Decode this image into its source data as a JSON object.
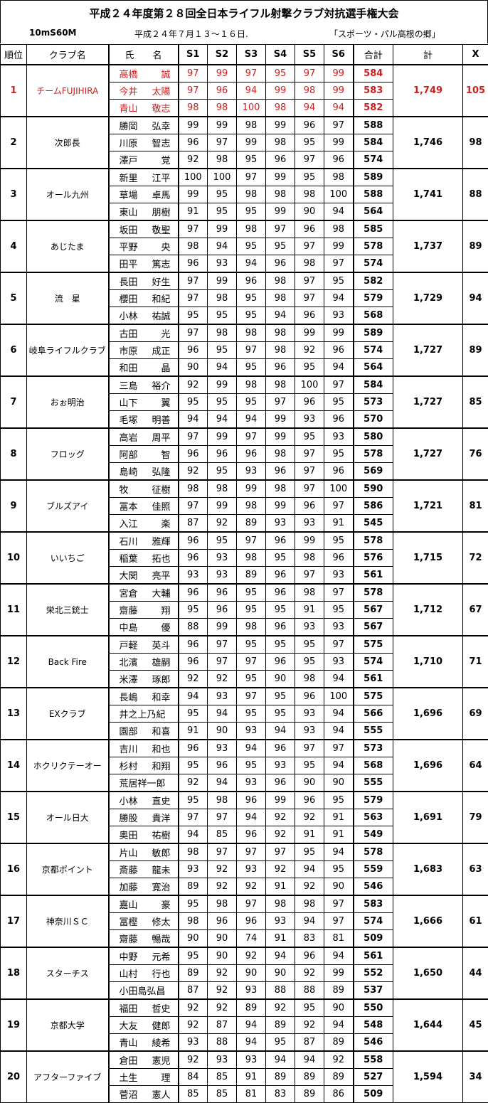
{
  "title": "平成２４年度第２８回全日本ライフル射撃クラブ対抗選手権大会",
  "event": "10mS60M",
  "date": "平成２４年７月１３～１６日.",
  "venue": "「スポーツ・パル高根の郷」",
  "headers": {
    "rank": "順位",
    "club": "クラブ名",
    "name": "氏　　名",
    "s": [
      "S1",
      "S2",
      "S3",
      "S4",
      "S5",
      "S6"
    ],
    "total": "合計",
    "grand": "計",
    "x": "X"
  },
  "colors": {
    "highlight": "#cc2020"
  },
  "teams": [
    {
      "rank": "1",
      "club": "チームFUJIHIRA",
      "grand": "1,749",
      "x": "105",
      "highlight": true,
      "members": [
        {
          "family": "高橋",
          "given": "誠",
          "scores": [
            97,
            99,
            97,
            95,
            97,
            99
          ],
          "total": 584
        },
        {
          "family": "今井",
          "given": "太陽",
          "scores": [
            97,
            96,
            94,
            99,
            98,
            99
          ],
          "total": 583
        },
        {
          "family": "青山",
          "given": "敬志",
          "scores": [
            98,
            98,
            100,
            98,
            94,
            94
          ],
          "total": 582
        }
      ]
    },
    {
      "rank": "2",
      "club": "次郎長",
      "grand": "1,746",
      "x": "98",
      "members": [
        {
          "family": "勝岡",
          "given": "弘幸",
          "scores": [
            99,
            99,
            98,
            99,
            96,
            97
          ],
          "total": 588
        },
        {
          "family": "川原",
          "given": "智志",
          "scores": [
            96,
            97,
            99,
            98,
            95,
            99
          ],
          "total": 584
        },
        {
          "family": "澤戸",
          "given": "覚",
          "scores": [
            92,
            98,
            95,
            96,
            97,
            96
          ],
          "total": 574
        }
      ]
    },
    {
      "rank": "3",
      "club": "オール九州",
      "grand": "1,741",
      "x": "88",
      "members": [
        {
          "family": "新里",
          "given": "江平",
          "scores": [
            100,
            100,
            97,
            99,
            95,
            98
          ],
          "total": 589
        },
        {
          "family": "草場",
          "given": "卓馬",
          "scores": [
            99,
            95,
            98,
            98,
            98,
            100
          ],
          "total": 588
        },
        {
          "family": "東山",
          "given": "朋樹",
          "scores": [
            91,
            95,
            95,
            99,
            90,
            94
          ],
          "total": 564
        }
      ]
    },
    {
      "rank": "4",
      "club": "あじたま",
      "grand": "1,737",
      "x": "89",
      "members": [
        {
          "family": "坂田",
          "given": "敬聖",
          "scores": [
            97,
            99,
            98,
            97,
            96,
            98
          ],
          "total": 585
        },
        {
          "family": "平野",
          "given": "央",
          "scores": [
            98,
            94,
            95,
            95,
            97,
            99
          ],
          "total": 578
        },
        {
          "family": "田平",
          "given": "篤志",
          "scores": [
            96,
            93,
            94,
            96,
            98,
            97
          ],
          "total": 574
        }
      ]
    },
    {
      "rank": "5",
      "club": "流　星",
      "grand": "1,729",
      "x": "94",
      "members": [
        {
          "family": "長田",
          "given": "好生",
          "scores": [
            97,
            99,
            96,
            98,
            97,
            95
          ],
          "total": 582
        },
        {
          "family": "櫻田",
          "given": "和紀",
          "scores": [
            97,
            98,
            95,
            98,
            97,
            94
          ],
          "total": 579
        },
        {
          "family": "小林",
          "given": "祐誠",
          "scores": [
            95,
            95,
            95,
            94,
            96,
            93
          ],
          "total": 568
        }
      ]
    },
    {
      "rank": "6",
      "club": "岐阜ライフルクラブ",
      "grand": "1,727",
      "x": "89",
      "members": [
        {
          "family": "古田",
          "given": "光",
          "scores": [
            97,
            98,
            98,
            98,
            99,
            99
          ],
          "total": 589
        },
        {
          "family": "市原",
          "given": "成正",
          "scores": [
            96,
            95,
            97,
            98,
            92,
            96
          ],
          "total": 574
        },
        {
          "family": "和田",
          "given": "晶",
          "scores": [
            90,
            94,
            95,
            96,
            95,
            94
          ],
          "total": 564
        }
      ]
    },
    {
      "rank": "7",
      "club": "おぉ明治",
      "grand": "1,727",
      "x": "85",
      "members": [
        {
          "family": "三島",
          "given": "裕介",
          "scores": [
            92,
            99,
            98,
            98,
            100,
            97
          ],
          "total": 584
        },
        {
          "family": "山下",
          "given": "翼",
          "scores": [
            95,
            95,
            95,
            97,
            96,
            95
          ],
          "total": 573
        },
        {
          "family": "毛塚",
          "given": "明善",
          "scores": [
            94,
            94,
            94,
            99,
            93,
            96
          ],
          "total": 570
        }
      ]
    },
    {
      "rank": "8",
      "club": "フロッグ",
      "grand": "1,727",
      "x": "76",
      "members": [
        {
          "family": "高岩",
          "given": "周平",
          "scores": [
            97,
            99,
            97,
            99,
            95,
            93
          ],
          "total": 580
        },
        {
          "family": "阿部",
          "given": "智",
          "scores": [
            96,
            96,
            96,
            98,
            97,
            95
          ],
          "total": 578
        },
        {
          "family": "島崎",
          "given": "弘隆",
          "scores": [
            92,
            95,
            93,
            96,
            97,
            96
          ],
          "total": 569
        }
      ]
    },
    {
      "rank": "9",
      "club": "ブルズアイ",
      "grand": "1,721",
      "x": "81",
      "members": [
        {
          "family": "牧",
          "given": "征樹",
          "scores": [
            98,
            98,
            99,
            98,
            97,
            100
          ],
          "total": 590
        },
        {
          "family": "冨本",
          "given": "佳照",
          "scores": [
            97,
            99,
            98,
            99,
            96,
            97
          ],
          "total": 586
        },
        {
          "family": "入江",
          "given": "楽",
          "scores": [
            87,
            92,
            89,
            93,
            93,
            91
          ],
          "total": 545
        }
      ]
    },
    {
      "rank": "10",
      "club": "いいちご",
      "grand": "1,715",
      "x": "72",
      "members": [
        {
          "family": "石川",
          "given": "雅輝",
          "scores": [
            96,
            95,
            97,
            96,
            99,
            95
          ],
          "total": 578
        },
        {
          "family": "稲葉",
          "given": "拓也",
          "scores": [
            96,
            93,
            98,
            95,
            98,
            96
          ],
          "total": 576
        },
        {
          "family": "大関",
          "given": "亮平",
          "scores": [
            93,
            93,
            89,
            96,
            97,
            93
          ],
          "total": 561
        }
      ]
    },
    {
      "rank": "11",
      "club": "栄北三銃士",
      "grand": "1,712",
      "x": "67",
      "members": [
        {
          "family": "宮倉",
          "given": "大輔",
          "scores": [
            96,
            96,
            95,
            96,
            98,
            97
          ],
          "total": 578
        },
        {
          "family": "齋藤",
          "given": "翔",
          "scores": [
            95,
            96,
            95,
            95,
            91,
            95
          ],
          "total": 567
        },
        {
          "family": "中島",
          "given": "優",
          "scores": [
            88,
            99,
            98,
            96,
            93,
            93
          ],
          "total": 567
        }
      ]
    },
    {
      "rank": "12",
      "club": "Back Fire",
      "grand": "1,710",
      "x": "71",
      "members": [
        {
          "family": "戸軽",
          "given": "英斗",
          "scores": [
            96,
            97,
            95,
            95,
            95,
            97
          ],
          "total": 575
        },
        {
          "family": "北濱",
          "given": "雄嗣",
          "scores": [
            96,
            97,
            97,
            96,
            95,
            93
          ],
          "total": 574
        },
        {
          "family": "米澤",
          "given": "琢郎",
          "scores": [
            92,
            92,
            95,
            90,
            98,
            94
          ],
          "total": 561
        }
      ]
    },
    {
      "rank": "13",
      "club": "EXクラブ",
      "grand": "1,696",
      "x": "69",
      "members": [
        {
          "family": "長嶋",
          "given": "和幸",
          "scores": [
            94,
            93,
            97,
            95,
            96,
            100
          ],
          "total": 575
        },
        {
          "family": "井之上乃紀",
          "given": "",
          "scores": [
            95,
            94,
            95,
            95,
            93,
            94
          ],
          "total": 566
        },
        {
          "family": "園部",
          "given": "和喜",
          "scores": [
            91,
            90,
            93,
            94,
            93,
            94
          ],
          "total": 555
        }
      ]
    },
    {
      "rank": "14",
      "club": "ホクリクテーオー",
      "grand": "1,696",
      "x": "64",
      "members": [
        {
          "family": "吉川",
          "given": "和也",
          "scores": [
            96,
            93,
            94,
            96,
            97,
            97
          ],
          "total": 573
        },
        {
          "family": "杉村",
          "given": "和翔",
          "scores": [
            95,
            96,
            95,
            93,
            95,
            94
          ],
          "total": 568
        },
        {
          "family": "荒居祥一郎",
          "given": "",
          "scores": [
            92,
            94,
            93,
            96,
            90,
            90
          ],
          "total": 555
        }
      ]
    },
    {
      "rank": "15",
      "club": "オール日大",
      "grand": "1,691",
      "x": "79",
      "members": [
        {
          "family": "小林",
          "given": "直史",
          "scores": [
            95,
            98,
            96,
            99,
            96,
            95
          ],
          "total": 579
        },
        {
          "family": "勝股",
          "given": "貴洋",
          "scores": [
            97,
            97,
            94,
            92,
            92,
            91
          ],
          "total": 563
        },
        {
          "family": "奥田",
          "given": "祐樹",
          "scores": [
            94,
            85,
            96,
            92,
            91,
            91
          ],
          "total": 549
        }
      ]
    },
    {
      "rank": "16",
      "club": "京都ポイント",
      "grand": "1,683",
      "x": "63",
      "members": [
        {
          "family": "片山",
          "given": "敏郎",
          "scores": [
            98,
            97,
            97,
            97,
            95,
            94
          ],
          "total": 578
        },
        {
          "family": "斎藤",
          "given": "龍未",
          "scores": [
            93,
            92,
            93,
            92,
            94,
            95
          ],
          "total": 559
        },
        {
          "family": "加藤",
          "given": "寛治",
          "scores": [
            89,
            92,
            92,
            91,
            92,
            90
          ],
          "total": 546
        }
      ]
    },
    {
      "rank": "17",
      "club": "神奈川ＳＣ",
      "grand": "1,666",
      "x": "61",
      "members": [
        {
          "family": "嘉山",
          "given": "豪",
          "scores": [
            95,
            98,
            97,
            98,
            98,
            97
          ],
          "total": 583
        },
        {
          "family": "冨樫",
          "given": "修太",
          "scores": [
            98,
            96,
            96,
            93,
            94,
            97
          ],
          "total": 574
        },
        {
          "family": "齋藤",
          "given": "暢哉",
          "scores": [
            90,
            90,
            74,
            91,
            83,
            81
          ],
          "total": 509
        }
      ]
    },
    {
      "rank": "18",
      "club": "スターチス",
      "grand": "1,650",
      "x": "44",
      "members": [
        {
          "family": "中野",
          "given": "元希",
          "scores": [
            95,
            90,
            92,
            94,
            96,
            94
          ],
          "total": 561
        },
        {
          "family": "山村",
          "given": "行也",
          "scores": [
            89,
            92,
            90,
            90,
            92,
            99
          ],
          "total": 552
        },
        {
          "family": "小田島弘昌",
          "given": "",
          "scores": [
            87,
            92,
            93,
            88,
            88,
            89
          ],
          "total": 537
        }
      ]
    },
    {
      "rank": "19",
      "club": "京都大学",
      "grand": "1,644",
      "x": "45",
      "members": [
        {
          "family": "福田",
          "given": "哲史",
          "scores": [
            92,
            92,
            89,
            92,
            95,
            90
          ],
          "total": 550
        },
        {
          "family": "大友",
          "given": "健郎",
          "scores": [
            92,
            87,
            94,
            89,
            92,
            94
          ],
          "total": 548
        },
        {
          "family": "青山",
          "given": "綾希",
          "scores": [
            93,
            88,
            94,
            95,
            87,
            89
          ],
          "total": 546
        }
      ]
    },
    {
      "rank": "20",
      "club": "アフターファイブ",
      "grand": "1,594",
      "x": "34",
      "members": [
        {
          "family": "倉田",
          "given": "憲児",
          "scores": [
            92,
            93,
            93,
            94,
            94,
            92
          ],
          "total": 558
        },
        {
          "family": "土生",
          "given": "理",
          "scores": [
            84,
            85,
            91,
            89,
            89,
            89
          ],
          "total": 527
        },
        {
          "family": "菅沼",
          "given": "憲人",
          "scores": [
            85,
            85,
            81,
            83,
            89,
            86
          ],
          "total": 509
        }
      ]
    }
  ]
}
